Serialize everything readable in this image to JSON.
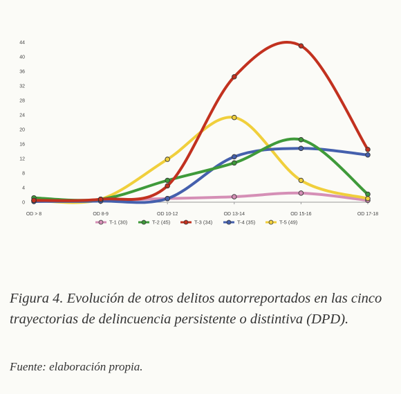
{
  "figure": {
    "caption": "Figura 4. Evolución de otros delitos autorreportados en las cinco trayectorias de delincuencia persistente o distintiva (DPD).",
    "source": "Fuente: elaboración propia."
  },
  "chart_data": {
    "type": "line",
    "categories": [
      "OD > 8",
      "OD 8-9",
      "OD 10-12",
      "OD 13-14",
      "OD 15-16",
      "OD 17-18"
    ],
    "ylim": [
      0,
      44
    ],
    "yticks": [
      0,
      4,
      8,
      12,
      16,
      20,
      24,
      28,
      32,
      36,
      40,
      44
    ],
    "grid": false,
    "smooth": true,
    "legend_position": "bottom",
    "series": [
      {
        "name": "T-1 (30)",
        "color": "#d58fb6",
        "values": [
          0.5,
          0.5,
          1.0,
          1.5,
          2.5,
          0.5
        ]
      },
      {
        "name": "T-2 (45)",
        "color": "#3f9a3a",
        "values": [
          1.2,
          0.8,
          6.0,
          10.8,
          17.2,
          2.2
        ]
      },
      {
        "name": "T-3 (34)",
        "color": "#c2311f",
        "values": [
          0.5,
          0.8,
          4.5,
          34.5,
          43.0,
          14.5
        ]
      },
      {
        "name": "T-4 (35)",
        "color": "#4560ad",
        "values": [
          0.2,
          0.3,
          1.0,
          12.5,
          14.8,
          13.0
        ]
      },
      {
        "name": "T-5 (49)",
        "color": "#f0cf3c",
        "values": [
          0.5,
          0.8,
          11.8,
          23.3,
          6.0,
          1.0
        ]
      }
    ]
  }
}
